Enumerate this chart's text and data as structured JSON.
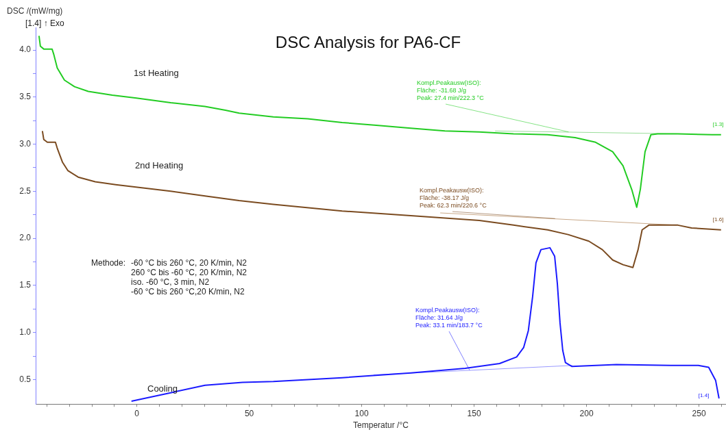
{
  "chart_data": {
    "type": "line",
    "title": "DSC Analysis for PA6-CF",
    "xlabel": "Temperatur /°C",
    "ylabel": "DSC /(mW/mg)",
    "xlim": [
      -45,
      262
    ],
    "ylim": [
      0.24,
      4.24
    ],
    "xticks": [
      {
        "value": -40,
        "label": null
      },
      {
        "value": -30,
        "label": null
      },
      {
        "value": -20,
        "label": null
      },
      {
        "value": -10,
        "label": null
      },
      0,
      {
        "value": 10,
        "label": null
      },
      {
        "value": 20,
        "label": null
      },
      {
        "value": 30,
        "label": null
      },
      {
        "value": 40,
        "label": null
      },
      50,
      {
        "value": 60,
        "label": null
      },
      {
        "value": 70,
        "label": null
      },
      {
        "value": 80,
        "label": null
      },
      {
        "value": 90,
        "label": null
      },
      100,
      {
        "value": 110,
        "label": null
      },
      {
        "value": 120,
        "label": null
      },
      {
        "value": 130,
        "label": null
      },
      {
        "value": 140,
        "label": null
      },
      150,
      {
        "value": 160,
        "label": null
      },
      {
        "value": 170,
        "label": null
      },
      {
        "value": 180,
        "label": null
      },
      {
        "value": 190,
        "label": null
      },
      200,
      {
        "value": 210,
        "label": null
      },
      {
        "value": 220,
        "label": null
      },
      {
        "value": 230,
        "label": null
      },
      {
        "value": 240,
        "label": null
      },
      250,
      {
        "value": 260,
        "label": null
      }
    ],
    "yticks": [
      {
        "value": 0.5,
        "label": "0.5"
      },
      {
        "value": 0.75,
        "label": null
      },
      {
        "value": 1,
        "label": "1.0"
      },
      {
        "value": 1.25,
        "label": null
      },
      {
        "value": 1.5,
        "label": "1.5"
      },
      {
        "value": 1.75,
        "label": null
      },
      {
        "value": 2,
        "label": "2.0"
      },
      {
        "value": 2.25,
        "label": null
      },
      {
        "value": 2.5,
        "label": "2.5"
      },
      {
        "value": 2.75,
        "label": null
      },
      {
        "value": 3,
        "label": "3.0"
      },
      {
        "value": 3.25,
        "label": null
      },
      {
        "value": 3.5,
        "label": "3.5"
      },
      {
        "value": 3.75,
        "label": null
      },
      {
        "value": 4,
        "label": "4.0"
      }
    ],
    "grid": false,
    "legend": false,
    "marker": "none",
    "line_style": "solid",
    "series": [
      {
        "name": "1st Heating",
        "color": "#22cc22",
        "x": [
          -43.5,
          -42.9,
          -41.4,
          -37.7,
          -36.9,
          -35.4,
          -32.2,
          -27.7,
          -21.6,
          -10.9,
          -0.2,
          15,
          30.3,
          39.4,
          45.5,
          60.7,
          76,
          91.3,
          106.5,
          121.8,
          137,
          152.3,
          167.5,
          182.7,
          194.9,
          204,
          211.6,
          216.2,
          220.2,
          222.3,
          223.9,
          226,
          228.6,
          231.6,
          240.6,
          255.8,
          259.8
        ],
        "values": [
          4.15,
          4.04,
          4.01,
          4.01,
          3.95,
          3.81,
          3.68,
          3.61,
          3.56,
          3.52,
          3.49,
          3.44,
          3.4,
          3.36,
          3.33,
          3.29,
          3.27,
          3.23,
          3.2,
          3.17,
          3.14,
          3.13,
          3.11,
          3.1,
          3.07,
          3.02,
          2.92,
          2.77,
          2.51,
          2.33,
          2.52,
          2.92,
          3.1,
          3.11,
          3.11,
          3.1,
          3.1
        ]
      },
      {
        "name": "2nd Heating",
        "color": "#7a4a1f",
        "x": [
          -42,
          -41.4,
          -39.8,
          -36.2,
          -35.3,
          -33.1,
          -30.7,
          -26.1,
          -18.5,
          -9.4,
          15,
          30.3,
          45.5,
          60.7,
          91.3,
          121.8,
          152.3,
          167.5,
          182.7,
          191.8,
          201,
          207,
          211.6,
          216.2,
          220.6,
          222.9,
          224.7,
          227.7,
          240.6,
          246.7,
          259.8
        ],
        "values": [
          3.14,
          3.05,
          3.02,
          3.02,
          2.95,
          2.81,
          2.72,
          2.65,
          2.6,
          2.57,
          2.5,
          2.45,
          2.4,
          2.36,
          2.29,
          2.24,
          2.19,
          2.14,
          2.09,
          2.04,
          1.97,
          1.88,
          1.77,
          1.72,
          1.69,
          1.88,
          2.09,
          2.14,
          2.14,
          2.11,
          2.09
        ]
      },
      {
        "name": "Cooling",
        "color": "#1a1aff",
        "x": [
          -2.4,
          15,
          30.3,
          47,
          60.7,
          91.3,
          121.8,
          146,
          161.3,
          168.9,
          172,
          174.1,
          176,
          177.5,
          179.7,
          183.7,
          185.8,
          187,
          188.2,
          189.4,
          190.6,
          193.4,
          213.2,
          237.5,
          249.7,
          254.3,
          257.4,
          258.9
        ],
        "values": [
          0.27,
          0.36,
          0.44,
          0.47,
          0.48,
          0.52,
          0.57,
          0.62,
          0.67,
          0.74,
          0.84,
          1.02,
          1.38,
          1.74,
          1.88,
          1.9,
          1.81,
          1.52,
          1.1,
          0.81,
          0.68,
          0.64,
          0.66,
          0.65,
          0.65,
          0.63,
          0.49,
          0.3
        ]
      },
      {
        "color": "#99dd99",
        "x": [
          159.3,
          240.3
        ],
        "values": [
          3.14,
          3.11
        ]
      },
      {
        "color": "#c8a888",
        "x": [
          134.9,
          240
        ],
        "values": [
          2.27,
          2.14
        ]
      },
      {
        "color": "#9999ff",
        "x": [
          105.3,
          193.7
        ],
        "values": [
          0.55,
          0.65
        ]
      }
    ],
    "annotations": [
      "[1.4] ↑ Exo",
      "Methode:\t-60 °C bis 260 °C, 20 K/min, N2\n\t260 °C bis -60 °C, 20 K/min, N2\n\tiso. -60 °C, 3 min, N2\n\t-60 °C bis 260 °C,20 K/min, N2",
      {
        "text": "Kompl.Peakausw(ISO):\nFläche: -31.68 J/g\nPeak: 27.4 min/222.3 °C",
        "x": 192,
        "y": 3.13
      },
      {
        "text": "Kompl.Peakausw(ISO):\nFläche: -38.17 J/g\nPeak: 62.3 min/220.6 °C",
        "x": 186,
        "y": 2.21
      },
      {
        "text": "Kompl.Peakausw(ISO):\nFläche: 31.64 J/g\nPeak: 33.1 min/183.7 °C",
        "x": 148,
        "y": 0.6
      },
      {
        "text": "[1.3]",
        "x": 259.8,
        "y": 3.1
      },
      {
        "text": "[1.6]",
        "x": 259.8,
        "y": 2.09
      },
      {
        "text": "[1.4]",
        "x": 258.9,
        "y": 0.3
      }
    ]
  }
}
